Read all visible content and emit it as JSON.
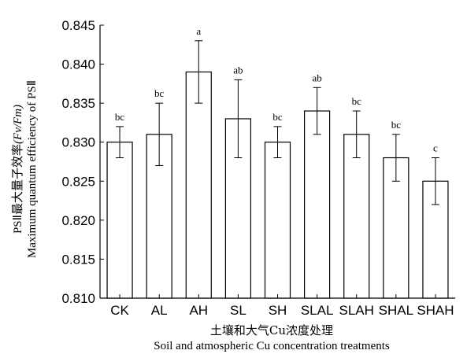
{
  "chart_data": {
    "type": "bar",
    "categories": [
      "CK",
      "AL",
      "AH",
      "SL",
      "SH",
      "SLAL",
      "SLAH",
      "SHAL",
      "SHAH"
    ],
    "values": [
      0.83,
      0.831,
      0.839,
      0.833,
      0.83,
      0.834,
      0.831,
      0.828,
      0.825
    ],
    "errors": [
      0.002,
      0.004,
      0.004,
      0.005,
      0.002,
      0.003,
      0.003,
      0.003,
      0.003
    ],
    "significance": [
      "bc",
      "bc",
      "a",
      "ab",
      "bc",
      "ab",
      "bc",
      "bc",
      "c"
    ],
    "ylim": [
      0.81,
      0.845
    ],
    "yticks": [
      "0.810",
      "0.815",
      "0.820",
      "0.825",
      "0.830",
      "0.835",
      "0.840",
      "0.845"
    ],
    "ytick_values": [
      0.81,
      0.815,
      0.82,
      0.825,
      0.83,
      0.835,
      0.84,
      0.845
    ],
    "xlabel_cn": "土壤和大气Cu浓度处理",
    "xlabel_en": "Soil and atmospheric Cu concentration treatments",
    "ylabel_line1": "PSⅡ最大量子效率",
    "ylabel_line1_paren": "(Fv/Fm)",
    "ylabel_line2": "Maximum quantum efficiency of PSⅡ",
    "grid": false,
    "bar_fill": "#ffffff",
    "bar_stroke": "#000000"
  }
}
